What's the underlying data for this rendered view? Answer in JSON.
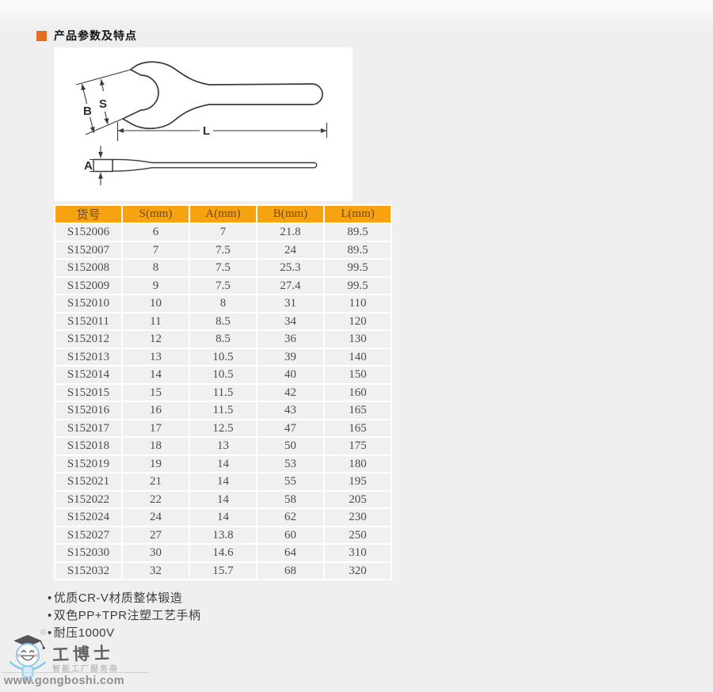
{
  "section": {
    "title": "产品参数及特点"
  },
  "diagram": {
    "labels": {
      "B": "B",
      "S": "S",
      "L": "L",
      "A": "A"
    }
  },
  "table": {
    "headers": [
      "货号",
      "S(mm)",
      "A(mm)",
      "B(mm)",
      "L(mm)"
    ],
    "rows": [
      [
        "S152006",
        "6",
        "7",
        "21.8",
        "89.5"
      ],
      [
        "S152007",
        "7",
        "7.5",
        "24",
        "89.5"
      ],
      [
        "S152008",
        "8",
        "7.5",
        "25.3",
        "99.5"
      ],
      [
        "S152009",
        "9",
        "7.5",
        "27.4",
        "99.5"
      ],
      [
        "S152010",
        "10",
        "8",
        "31",
        "110"
      ],
      [
        "S152011",
        "11",
        "8.5",
        "34",
        "120"
      ],
      [
        "S152012",
        "12",
        "8.5",
        "36",
        "130"
      ],
      [
        "S152013",
        "13",
        "10.5",
        "39",
        "140"
      ],
      [
        "S152014",
        "14",
        "10.5",
        "40",
        "150"
      ],
      [
        "S152015",
        "15",
        "11.5",
        "42",
        "160"
      ],
      [
        "S152016",
        "16",
        "11.5",
        "43",
        "165"
      ],
      [
        "S152017",
        "17",
        "12.5",
        "47",
        "165"
      ],
      [
        "S152018",
        "18",
        "13",
        "50",
        "175"
      ],
      [
        "S152019",
        "19",
        "14",
        "53",
        "180"
      ],
      [
        "S152021",
        "21",
        "14",
        "55",
        "195"
      ],
      [
        "S152022",
        "22",
        "14",
        "58",
        "205"
      ],
      [
        "S152024",
        "24",
        "14",
        "62",
        "230"
      ],
      [
        "S152027",
        "27",
        "13.8",
        "60",
        "250"
      ],
      [
        "S152030",
        "30",
        "14.6",
        "64",
        "310"
      ],
      [
        "S152032",
        "32",
        "15.7",
        "68",
        "320"
      ]
    ]
  },
  "features": [
    "优质CR-V材质整体锻造",
    "双色PP+TPR注塑工艺手柄",
    "耐压1000V"
  ],
  "footer": {
    "brand": "工博士",
    "registered": "®",
    "slogan": "智能工厂服务商",
    "url": "www.gongboshi.com"
  },
  "colors": {
    "accent_orange": "#e2701f",
    "table_header_bg": "#f7a311",
    "table_header_text": "#6e4a1a",
    "cell_bg": "#f0f0f1",
    "cell_text": "#4c4c4c",
    "page_bg": "#efeff0",
    "diagram_bg": "#ffffff"
  }
}
